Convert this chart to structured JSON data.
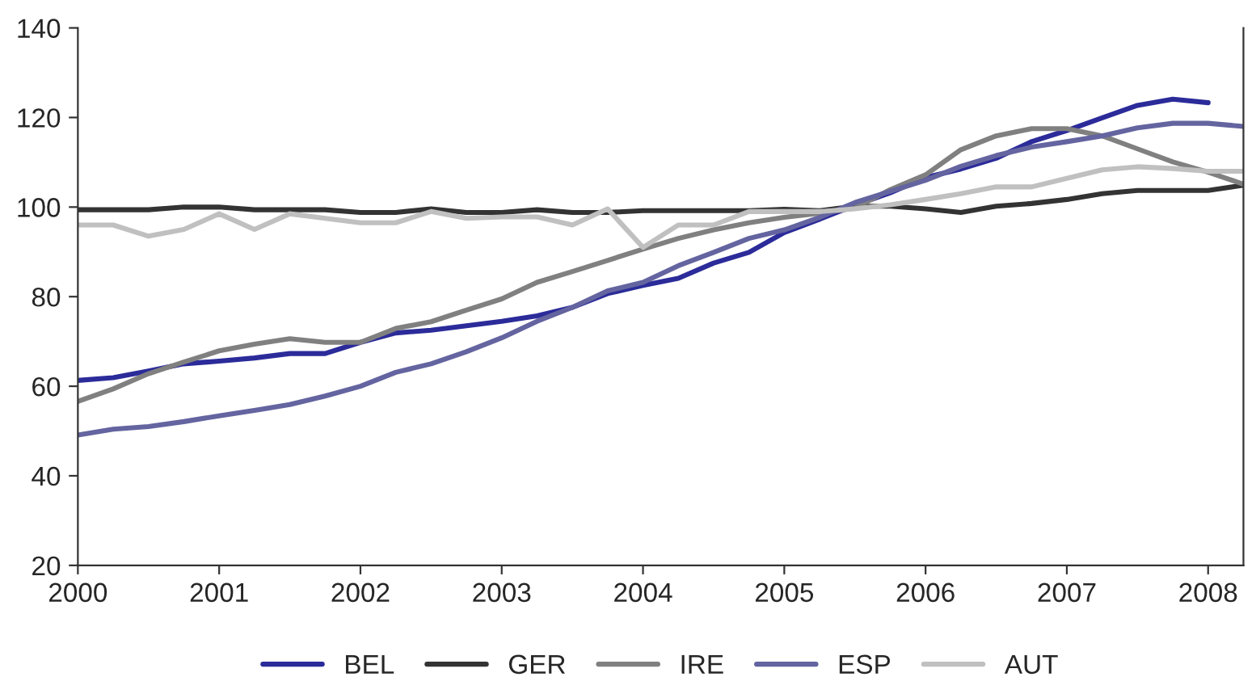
{
  "chart_data": {
    "type": "line",
    "x": [
      2000,
      2000.25,
      2000.5,
      2000.75,
      2001,
      2001.25,
      2001.5,
      2001.75,
      2002,
      2002.25,
      2002.5,
      2002.75,
      2003,
      2003.25,
      2003.5,
      2003.75,
      2004,
      2004.25,
      2004.5,
      2004.75,
      2005,
      2005.25,
      2005.5,
      2005.75,
      2006,
      2006.25,
      2006.5,
      2006.75,
      2007,
      2007.25,
      2007.5,
      2007.75,
      2008,
      2008.25
    ],
    "series": [
      {
        "name": "BEL",
        "color": "#2b2b9a",
        "values": [
          61.3,
          61.9,
          63.4,
          65,
          65.6,
          66.3,
          67.3,
          67.3,
          69.8,
          71.9,
          72.5,
          73.5,
          74.5,
          75.7,
          77.6,
          80.7,
          82.5,
          84.1,
          87.5,
          89.9,
          94.3,
          97.3,
          100.4,
          103.2,
          106.6,
          108.5,
          110.9,
          114.6,
          117.1,
          119.9,
          122.7,
          124.1,
          123.3,
          null
        ]
      },
      {
        "name": "GER",
        "color": "#333333",
        "values": [
          99.4,
          99.4,
          99.4,
          100,
          100,
          99.4,
          99.4,
          99.4,
          98.8,
          98.8,
          99.6,
          98.8,
          98.8,
          99.4,
          98.8,
          98.8,
          99.2,
          99.2,
          99.2,
          99.2,
          99.5,
          99.2,
          100.2,
          100.2,
          99.6,
          98.8,
          100.2,
          100.8,
          101.7,
          103,
          103.7,
          103.7,
          103.7,
          104.9
        ]
      },
      {
        "name": "IRE",
        "color": "#808080",
        "values": [
          56.6,
          59.4,
          62.8,
          65.4,
          67.9,
          69.4,
          70.6,
          69.8,
          69.8,
          72.9,
          74.4,
          77,
          79.5,
          83.2,
          85.6,
          88.1,
          90.6,
          93,
          94.9,
          96.5,
          97.7,
          98.6,
          99.8,
          103.9,
          107.2,
          112.8,
          115.9,
          117.5,
          117.5,
          115.9,
          113,
          110.1,
          107.8,
          105.1
        ]
      },
      {
        "name": "ESP",
        "color": "#6464a0",
        "values": [
          49.1,
          50.4,
          51,
          52.1,
          53.4,
          54.6,
          55.9,
          57.8,
          60,
          63.1,
          65,
          67.7,
          70.8,
          74.5,
          77.6,
          81.3,
          83.2,
          86.9,
          89.9,
          93,
          94.9,
          97.7,
          101,
          103.5,
          106,
          109.1,
          111.5,
          113.4,
          114.6,
          115.9,
          117.7,
          118.7,
          118.7,
          118
        ]
      },
      {
        "name": "AUT",
        "color": "#c0c0c0",
        "values": [
          96,
          96,
          93.5,
          95,
          98.5,
          95,
          98.5,
          97.5,
          96.5,
          96.5,
          99,
          97.5,
          97.8,
          97.8,
          96,
          99.6,
          91,
          96,
          96,
          99,
          99,
          99,
          99.6,
          100.5,
          101.7,
          103,
          104.5,
          104.5,
          106.4,
          108.3,
          109,
          108.6,
          108,
          108
        ]
      }
    ],
    "xlim": [
      2000,
      2008.25
    ],
    "xticks": [
      2000,
      2001,
      2002,
      2003,
      2004,
      2005,
      2006,
      2007,
      2008
    ],
    "ylim": [
      20,
      140
    ],
    "yticks": [
      20,
      40,
      60,
      80,
      100,
      120,
      140
    ],
    "grid": false,
    "legend": "bottom",
    "marker": "none",
    "line_style": "solid"
  }
}
